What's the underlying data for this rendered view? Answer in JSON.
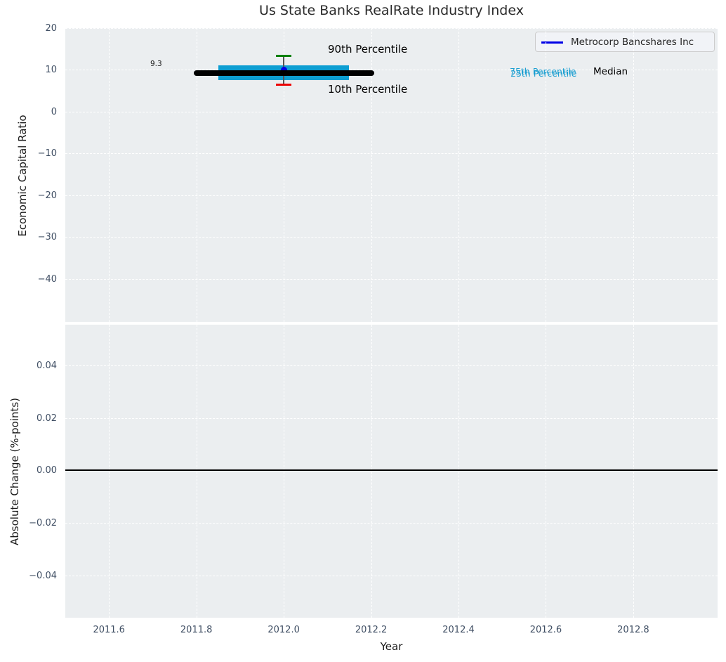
{
  "figure": {
    "title": "Us State Banks RealRate Industry Index"
  },
  "legend": {
    "series_label": "Metrocorp Bancshares Inc"
  },
  "colors": {
    "plot_bg": "#ebeef0",
    "grid": "#ffffff",
    "percentile_band": "#0d9ed2",
    "percentile_text": "#1d9fd1",
    "median_line": "#000000",
    "company_marker": "#0000e6",
    "whisker_90th": "#008000",
    "whisker_10th": "#ed0000",
    "whisker_stem": "#555555",
    "zero_line": "#000000",
    "tick_label": "#3f4e63",
    "title_text": "#2b2b2b"
  },
  "chart_data": [
    {
      "type": "box-errorbar",
      "ylabel": "Economic Capital Ratio",
      "xlabel": "",
      "xlim": [
        2011.5,
        2012.993
      ],
      "ylim": [
        -50.3,
        20
      ],
      "grid": true,
      "legend_position": "upper right",
      "xticks": [
        2011.6,
        2011.8,
        2012.0,
        2012.2,
        2012.4,
        2012.6,
        2012.8
      ],
      "xtick_labels": [
        "2011.6",
        "2011.8",
        "2012.0",
        "2012.2",
        "2012.4",
        "2012.6",
        "2012.8"
      ],
      "yticks": [
        20,
        10,
        0,
        -10,
        -20,
        -30,
        -40
      ],
      "ytick_labels": [
        "20",
        "10",
        "0",
        "−10",
        "−20",
        "−30",
        "−40"
      ],
      "series": [
        {
          "name": "Metrocorp Bancshares Inc",
          "x": [
            2012.0
          ],
          "y": [
            10.0
          ],
          "style": "marker"
        },
        {
          "name": "Median",
          "x": [
            2012.0
          ],
          "y": [
            9.3
          ],
          "x_halfspan": 0.2,
          "style": "thick-line"
        },
        {
          "name": "25th-75th Percentile band",
          "x": [
            2012.0
          ],
          "p25": [
            7.6
          ],
          "p75": [
            11.1
          ],
          "x_halfspan": 0.15,
          "style": "band"
        },
        {
          "name": "10th-90th Percentile whiskers",
          "x": [
            2012.0
          ],
          "p10": [
            6.5
          ],
          "p90": [
            13.4
          ],
          "style": "errorbar"
        }
      ],
      "annotations": [
        {
          "id": "median-value",
          "text": "9.3"
        },
        {
          "id": "p90-label",
          "text": "90th Percentile"
        },
        {
          "id": "p10-label",
          "text": "10th Percentile"
        },
        {
          "id": "p75-label",
          "text": "75th Percentile"
        },
        {
          "id": "p25-label",
          "text": "25th Percentile"
        },
        {
          "id": "median-label",
          "text": "Median"
        }
      ]
    },
    {
      "type": "line",
      "ylabel": "Absolute Change (%-points)",
      "xlabel": "Year",
      "xlim": [
        2011.5,
        2012.993
      ],
      "ylim": [
        -0.0562,
        0.0556
      ],
      "grid": true,
      "xticks": [
        2011.6,
        2011.8,
        2012.0,
        2012.2,
        2012.4,
        2012.6,
        2012.8
      ],
      "xtick_labels": [
        "2011.6",
        "2011.8",
        "2012.0",
        "2012.2",
        "2012.4",
        "2012.6",
        "2012.8"
      ],
      "yticks": [
        0.04,
        0.02,
        0.0,
        -0.02,
        -0.04
      ],
      "ytick_labels": [
        "0.04",
        "0.02",
        "0.00",
        "−0.02",
        "−0.04"
      ],
      "zero_line": 0.0,
      "series": []
    }
  ]
}
